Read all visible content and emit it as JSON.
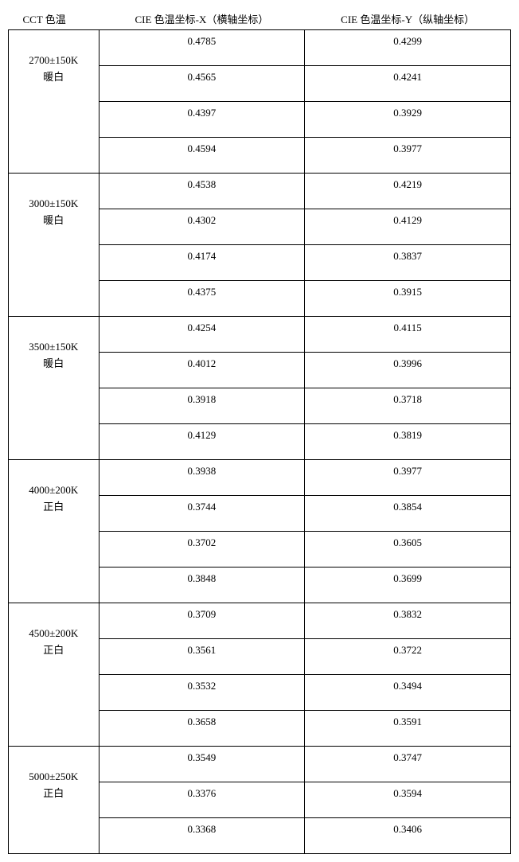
{
  "table": {
    "columns": {
      "cct": "CCT 色温",
      "x": "CIE 色温坐标-X（横轴坐标）",
      "y": "CIE 色温坐标-Y（纵轴坐标）"
    },
    "groups": [
      {
        "cct_line1": "2700±150K",
        "cct_line2": "暖白",
        "rows": [
          {
            "x": "0.4785",
            "y": "0.4299"
          },
          {
            "x": "0.4565",
            "y": "0.4241"
          },
          {
            "x": "0.4397",
            "y": "0.3929"
          },
          {
            "x": "0.4594",
            "y": "0.3977"
          }
        ]
      },
      {
        "cct_line1": "3000±150K",
        "cct_line2": "暖白",
        "rows": [
          {
            "x": "0.4538",
            "y": "0.4219"
          },
          {
            "x": "0.4302",
            "y": "0.4129"
          },
          {
            "x": "0.4174",
            "y": "0.3837"
          },
          {
            "x": "0.4375",
            "y": "0.3915"
          }
        ]
      },
      {
        "cct_line1": "3500±150K",
        "cct_line2": "暖白",
        "rows": [
          {
            "x": "0.4254",
            "y": "0.4115"
          },
          {
            "x": "0.4012",
            "y": "0.3996"
          },
          {
            "x": "0.3918",
            "y": "0.3718"
          },
          {
            "x": "0.4129",
            "y": "0.3819"
          }
        ]
      },
      {
        "cct_line1": "4000±200K",
        "cct_line2": "正白",
        "rows": [
          {
            "x": "0.3938",
            "y": "0.3977"
          },
          {
            "x": "0.3744",
            "y": "0.3854"
          },
          {
            "x": "0.3702",
            "y": "0.3605"
          },
          {
            "x": "0.3848",
            "y": "0.3699"
          }
        ]
      },
      {
        "cct_line1": "4500±200K",
        "cct_line2": "正白",
        "rows": [
          {
            "x": "0.3709",
            "y": "0.3832"
          },
          {
            "x": "0.3561",
            "y": "0.3722"
          },
          {
            "x": "0.3532",
            "y": "0.3494"
          },
          {
            "x": "0.3658",
            "y": "0.3591"
          }
        ]
      },
      {
        "cct_line1": "5000±250K",
        "cct_line2": "正白",
        "rows": [
          {
            "x": "0.3549",
            "y": "0.3747"
          },
          {
            "x": "0.3376",
            "y": "0.3594"
          },
          {
            "x": "0.3368",
            "y": "0.3406"
          }
        ]
      }
    ]
  },
  "styling": {
    "border_color": "#000000",
    "background_color": "#ffffff",
    "text_color": "#000000",
    "font_size": 13,
    "font_family": "SimSun"
  }
}
